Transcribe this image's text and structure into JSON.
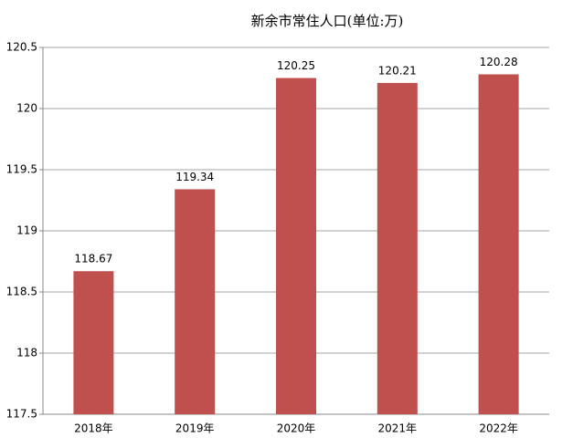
{
  "chart_data": {
    "type": "bar",
    "title": "新余市常住人口(单位:万)",
    "categories": [
      "2018年",
      "2019年",
      "2020年",
      "2021年",
      "2022年"
    ],
    "values": [
      118.67,
      119.34,
      120.25,
      120.21,
      120.28
    ],
    "color": "#c0504d",
    "ylim": [
      117.5,
      120.5
    ],
    "yticks": [
      117.5,
      118,
      118.5,
      119,
      119.5,
      120,
      120.5
    ],
    "grid": true
  }
}
